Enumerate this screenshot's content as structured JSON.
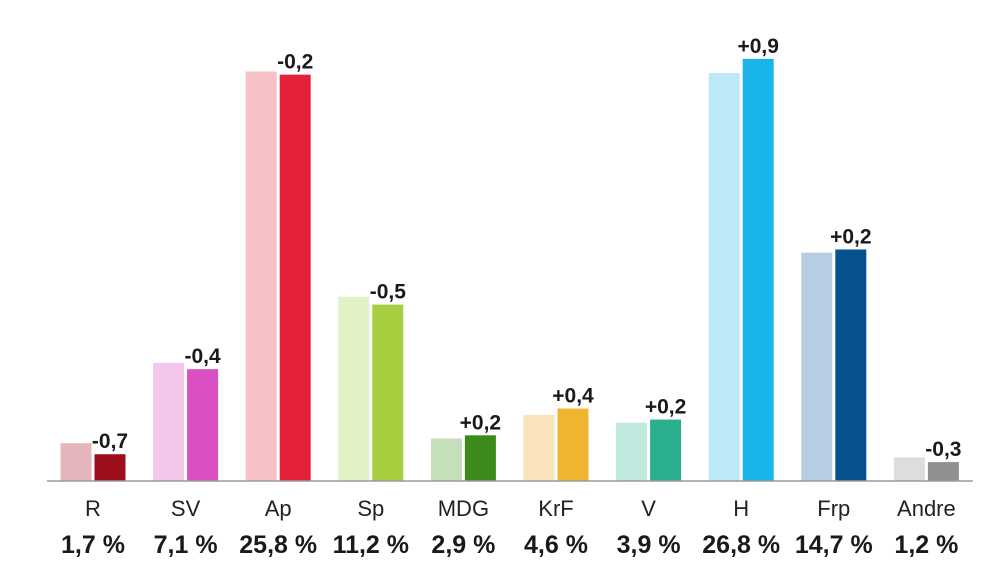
{
  "chart_data": {
    "type": "bar",
    "categories": [
      "R",
      "SV",
      "Ap",
      "Sp",
      "MDG",
      "KrF",
      "V",
      "H",
      "Frp",
      "Andre"
    ],
    "percent_labels": [
      "1,7 %",
      "7,1 %",
      "25,8 %",
      "11,2 %",
      "2,9 %",
      "4,6 %",
      "3,9 %",
      "26,8 %",
      "14,7 %",
      "1,2 %"
    ],
    "change_labels": [
      "-0,7",
      "-0,4",
      "-0,2",
      "-0,5",
      "+0,2",
      "+0,4",
      "+0,2",
      "+0,9",
      "+0,2",
      "-0,3"
    ],
    "series": [
      {
        "values": [
          2.4,
          7.5,
          26.0,
          11.7,
          2.7,
          4.2,
          3.7,
          25.9,
          14.5,
          1.5
        ]
      },
      {
        "values": [
          1.7,
          7.1,
          25.8,
          11.2,
          2.9,
          4.6,
          3.9,
          26.8,
          14.7,
          1.2
        ]
      }
    ],
    "colors": {
      "previous": [
        "#e4b6bb",
        "#f3c6ea",
        "#f7c1c8",
        "#e3f1c7",
        "#c4dfba",
        "#f9e3bb",
        "#bfe8de",
        "#bde8f8",
        "#b7cde4",
        "#dddddd"
      ],
      "current": [
        "#9e0d1c",
        "#d94fc4",
        "#e3223a",
        "#a7ce3f",
        "#3c8b1a",
        "#f0b431",
        "#2bb08f",
        "#19b4ea",
        "#06528f",
        "#909090"
      ]
    },
    "ylim": [
      0,
      28
    ],
    "grid": false,
    "legend": "none"
  }
}
